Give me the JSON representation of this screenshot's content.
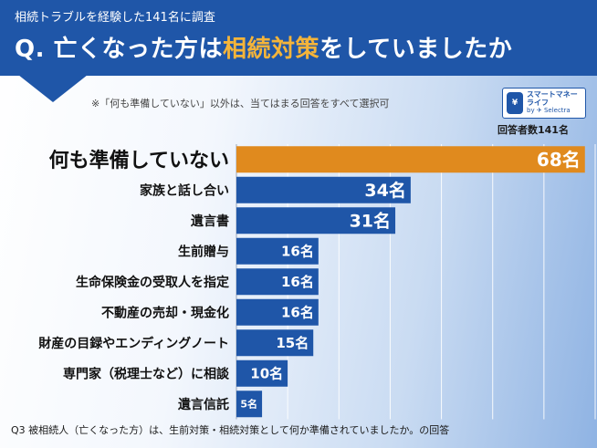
{
  "header": {
    "subtitle": "相続トラブルを経験した141名に調査",
    "title_prefix": "Q. 亡くなった方は",
    "title_highlight": "相続対策",
    "title_suffix": "をしていましたか"
  },
  "note": "※「何も準備していない」以外は、当てはまる回答をすべて選択可",
  "logo": {
    "line1": "スマートマネーライフ",
    "line2": "by ✈ Selectra",
    "mark": "¥"
  },
  "respondents": "回答者数141名",
  "footnote": "Q3 被相続人（亡くなった方）は、生前対策・相続対策として何か準備されていましたか。の回答",
  "colors": {
    "header": "#1f56a8",
    "bar": "#1f56a8",
    "highlight_bar": "#e08a1e",
    "highlight_text": "#e08a1e"
  },
  "chart_data": {
    "type": "bar",
    "orientation": "horizontal",
    "unit": "名",
    "categories": [
      "何も準備していない",
      "家族と話し合い",
      "遺言書",
      "生前贈与",
      "生命保険金の受取人を指定",
      "不動産の売却・現金化",
      "財産の目録やエンディングノート",
      "専門家（税理士など）に相談",
      "遺言信託"
    ],
    "values": [
      68,
      34,
      31,
      16,
      16,
      16,
      15,
      10,
      5
    ],
    "value_labels": [
      "68名",
      "34名",
      "31名",
      "16名",
      "16名",
      "16名",
      "15名",
      "10名",
      "5名"
    ],
    "highlight_index": 0,
    "xlim": [
      0,
      70
    ],
    "grid": true
  }
}
